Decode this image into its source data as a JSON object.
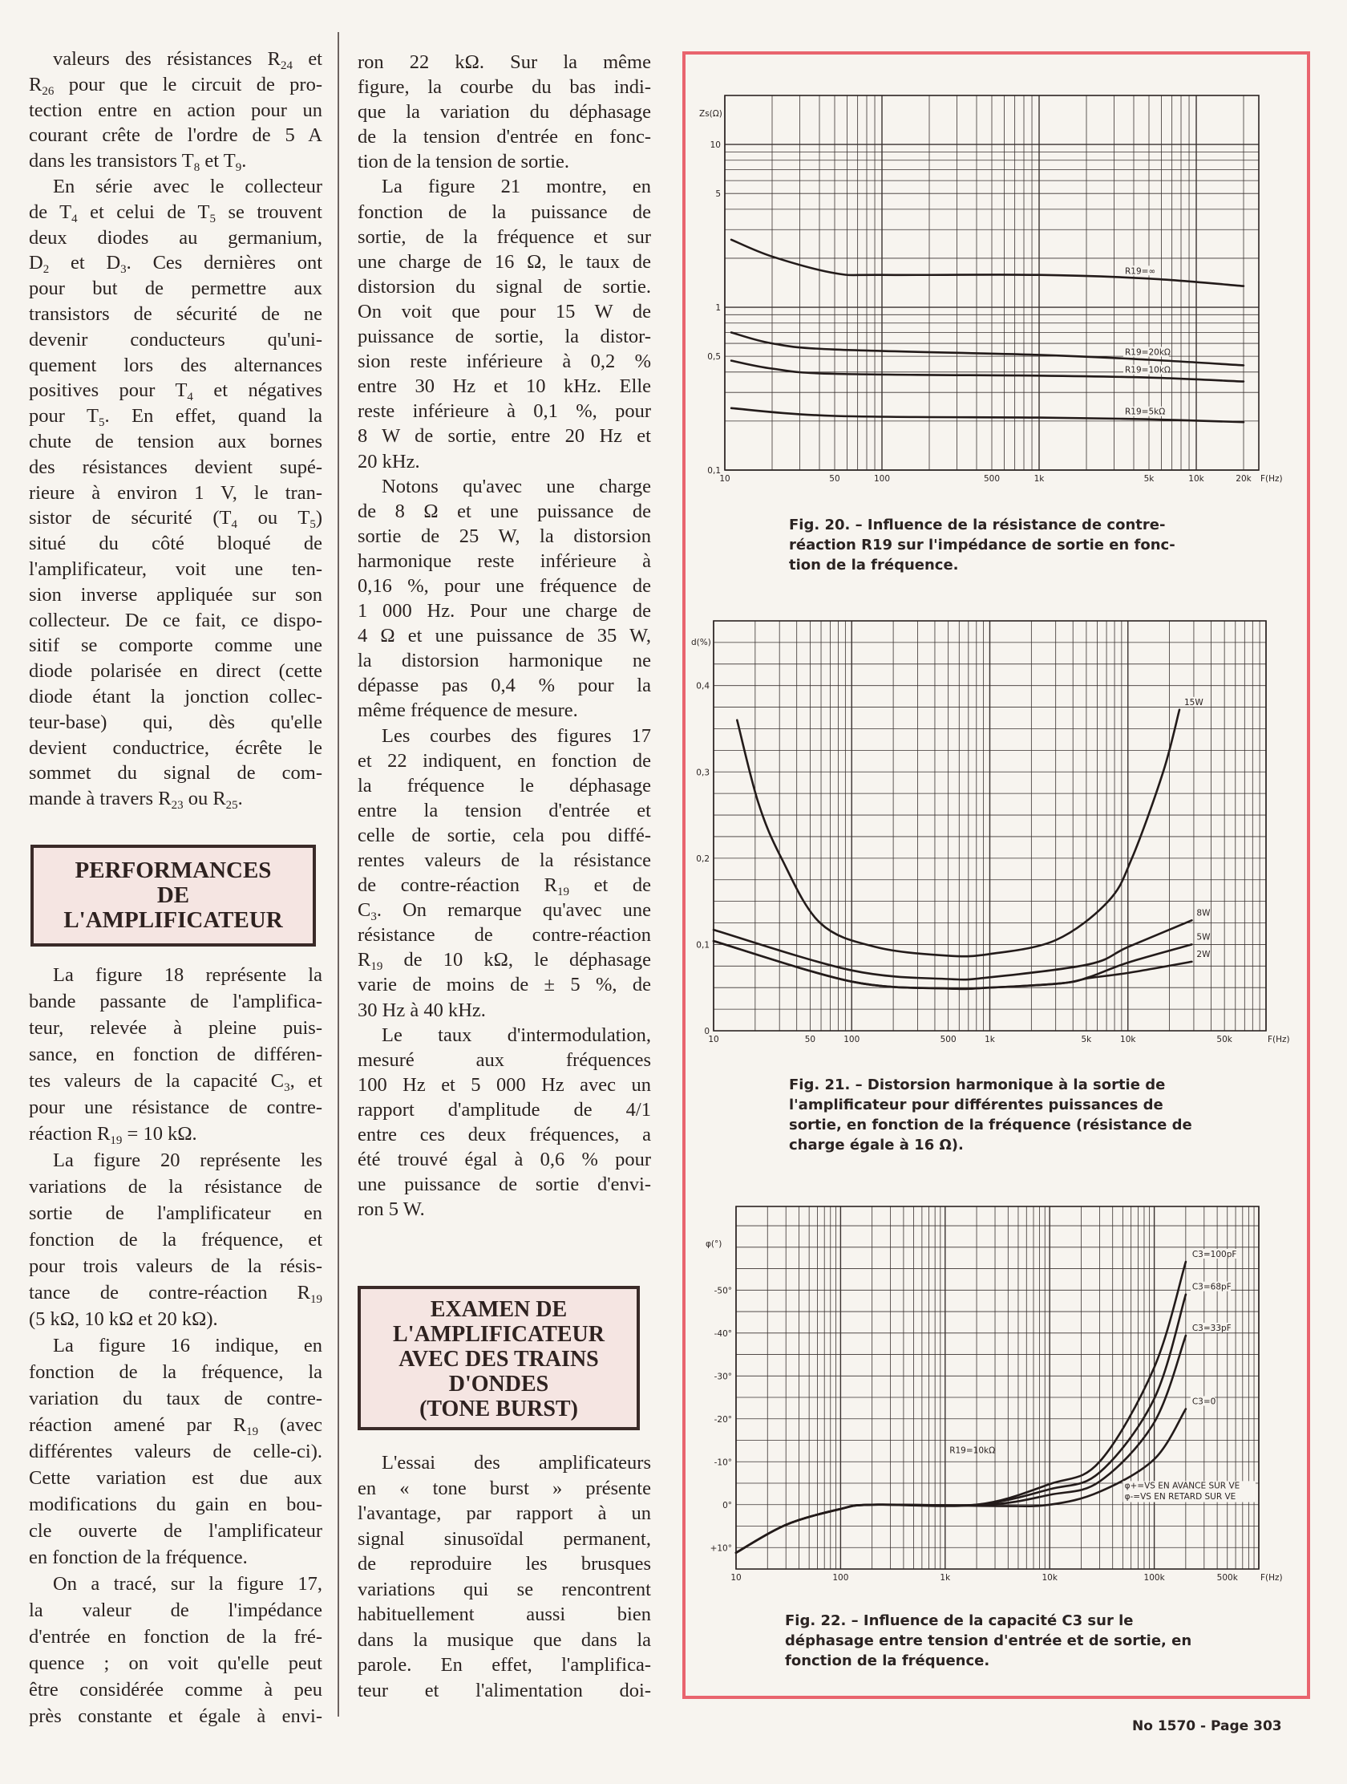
{
  "columns": {
    "col1a": [
      [
        "valeurs des résistances R_{24} et",
        "R_{26} pour que le circuit de pro-",
        "tection entre en action pour un",
        "courant crête de l'ordre de 5 A",
        "dans les transistors T_{8} et T_{9}."
      ],
      [
        "En série avec le collecteur",
        "de T_{4} et celui de T_{5} se trouvent",
        "deux diodes au germanium,",
        "D_{2} et D_{3}. Ces dernières ont",
        "pour but de permettre aux",
        "transistors de sécurité de ne",
        "devenir conducteurs qu'uni-",
        "quement lors des alternances",
        "positives pour T_{4} et négatives",
        "pour T_{5}. En effet, quand la",
        "chute de tension aux bornes",
        "des résistances devient supé-",
        "rieure à environ 1 V, le tran-",
        "sistor de sécurité (T_{4} ou T_{5})",
        "situé du côté bloqué de",
        "l'amplificateur, voit une ten-",
        "sion inverse appliquée sur son",
        "collecteur. De ce fait, ce dispo-",
        "sitif se comporte comme une",
        "diode polarisée en direct (cette",
        "diode étant la jonction collec-",
        "teur-base) qui, dès qu'elle",
        "devient conductrice, écrête le",
        "sommet du signal de com-",
        "mande à travers R_{23} ou R_{25}."
      ]
    ],
    "col1b": [
      [
        "La figure 18 représente la",
        "bande passante de l'amplifica-",
        "teur, relevée à pleine puis-",
        "sance, en fonction de différen-",
        "tes valeurs de la capacité C_{3}, et",
        "pour une résistance de contre-",
        "réaction R_{19} = 10 kΩ."
      ],
      [
        "La figure 20 représente les",
        "variations de la résistance de",
        "sortie de l'amplificateur en",
        "fonction de la fréquence, et",
        "pour trois valeurs de la résis-",
        "tance de contre-réaction R_{19}",
        "(5 kΩ, 10 kΩ et 20 kΩ)."
      ],
      [
        "La figure 16 indique, en",
        "fonction de la fréquence, la",
        "variation du taux de contre-",
        "réaction amené par R_{19} (avec",
        "différentes valeurs de celle-ci).",
        "Cette variation est due aux",
        "modifications du gain en bou-",
        "cle ouverte de l'amplificateur",
        "en fonction de la fréquence."
      ],
      [
        "On a tracé, sur la figure 17,",
        "la valeur de l'impédance",
        "d'entrée en fonction de la fré-",
        "quence ; on voit qu'elle peut",
        "être considérée comme à peu",
        "près constante et égale à envi-"
      ]
    ],
    "col2a": [
      [
        "ron 22 kΩ. Sur la même",
        "figure, la courbe du bas indi-",
        "que la variation du déphasage",
        "de la tension d'entrée en fonc-",
        "tion de la tension de sortie."
      ],
      [
        "La figure 21 montre, en",
        "fonction de la puissance de",
        "sortie, de la fréquence et sur",
        "une charge de 16 Ω, le taux de",
        "distorsion du signal de sortie.",
        "On voit que pour 15 W de",
        "puissance de sortie, la distor-",
        "sion reste inférieure à 0,2 %",
        "entre 30 Hz et 10 kHz. Elle",
        "reste inférieure à 0,1 %, pour",
        "8 W de sortie, entre 20 Hz et",
        "20 kHz."
      ],
      [
        "Notons qu'avec une charge",
        "de 8 Ω et une puissance de",
        "sortie de 25 W, la distorsion",
        "harmonique reste inférieure à",
        "0,16 %, pour une fréquence de",
        "1 000 Hz. Pour une charge de",
        "4 Ω et une puissance de 35 W,",
        "la distorsion harmonique ne",
        "dépasse pas 0,4 % pour la",
        "même fréquence de mesure."
      ],
      [
        "Les courbes des figures 17",
        "et 22 indiquent, en fonction de",
        "la fréquence le déphasage",
        "entre la tension d'entrée et",
        "celle de sortie, cela pou diffé-",
        "rentes valeurs de la résistance",
        "de contre-réaction R_{19} et de",
        "C_{3}. On remarque qu'avec une",
        "résistance de contre-réaction",
        "R_{19} de 10 kΩ, le déphasage",
        "varie de moins de ± 5 %, de",
        "30 Hz à 40 kHz."
      ],
      [
        "Le taux d'intermodulation,",
        "mesuré aux fréquences",
        "100 Hz et 5 000 Hz avec un",
        "rapport d'amplitude de 4/1",
        "entre ces deux fréquences, a",
        "été trouvé égal à 0,6 % pour",
        "une puissance de sortie d'envi-",
        "ron 5 W."
      ]
    ],
    "col2b": [
      [
        "L'essai des amplificateurs",
        "en « tone burst » présente",
        "l'avantage, par rapport à un",
        "signal sinusoïdal permanent,",
        "de reproduire les brusques",
        "variations qui se rencontrent",
        "habituellement aussi bien",
        "dans la musique que dans la",
        "parole. En effet, l'amplifica-",
        "teur et l'alimentation doi-"
      ]
    ]
  },
  "headings": {
    "performances": [
      "PERFORMANCES",
      "DE",
      "L'AMPLIFICATEUR"
    ],
    "examen": [
      "EXAMEN DE",
      "L'AMPLIFICATEUR",
      "AVEC DES TRAINS",
      "D'ONDES",
      "(TONE BURST)"
    ]
  },
  "captions": {
    "fig20": [
      "Fig. 20. – Influence de la résistance de contre-",
      "réaction R19 sur l'impédance de sortie en fonc-",
      "tion de la fréquence."
    ],
    "fig21": [
      "Fig. 21. – Distorsion harmonique à la sortie de",
      "l'amplificateur pour différentes puissances de",
      "sortie, en fonction de la fréquence (résistance de",
      "charge égale à 16 Ω)."
    ],
    "fig22": [
      "Fig. 22. – Influence de la capacité C3 sur le",
      "déphasage entre tension d'entrée et de sortie, en",
      "fonction de la fréquence."
    ]
  },
  "footer": "No 1570 - Page 303",
  "colors": {
    "frame": "#e9646e",
    "ink": "#2b2322",
    "heading_bg": "#f5e5e2"
  },
  "chart_data": [
    {
      "id": "fig20",
      "type": "line",
      "xscale": "log",
      "yscale": "log",
      "xlim": [
        10,
        25000
      ],
      "ylim": [
        0.1,
        20
      ],
      "ylabel": "Zs(Ω)",
      "xlabel": "F(Hz)",
      "xticks": [
        [
          10,
          "10"
        ],
        [
          50,
          "50"
        ],
        [
          100,
          "100"
        ],
        [
          500,
          "500"
        ],
        [
          1000,
          "1k"
        ],
        [
          5000,
          "5k"
        ],
        [
          10000,
          "10k"
        ],
        [
          20000,
          "20k"
        ]
      ],
      "yticks": [
        [
          10,
          "10"
        ],
        [
          5,
          "5"
        ],
        [
          1,
          "1"
        ],
        [
          0.5,
          "0,5"
        ],
        [
          0.1,
          "0,1"
        ]
      ],
      "series": [
        {
          "name": "R19=∞",
          "points": [
            [
              11,
              2.6
            ],
            [
              20,
              2.05
            ],
            [
              50,
              1.62
            ],
            [
              100,
              1.58
            ],
            [
              1000,
              1.58
            ],
            [
              5000,
              1.5
            ],
            [
              20000,
              1.35
            ]
          ]
        },
        {
          "name": "R19=20kΩ",
          "points": [
            [
              11,
              0.7
            ],
            [
              20,
              0.6
            ],
            [
              50,
              0.55
            ],
            [
              1000,
              0.51
            ],
            [
              5000,
              0.476
            ],
            [
              20000,
              0.44
            ]
          ]
        },
        {
          "name": "R19=10kΩ",
          "points": [
            [
              11,
              0.47
            ],
            [
              20,
              0.42
            ],
            [
              50,
              0.39
            ],
            [
              1000,
              0.38
            ],
            [
              5000,
              0.37
            ],
            [
              20000,
              0.35
            ]
          ]
        },
        {
          "name": "R19=5kΩ",
          "points": [
            [
              11,
              0.24
            ],
            [
              50,
              0.215
            ],
            [
              1000,
              0.21
            ],
            [
              5000,
              0.205
            ],
            [
              20000,
              0.197
            ]
          ]
        }
      ]
    },
    {
      "id": "fig21",
      "type": "line",
      "xscale": "log",
      "yscale": "linear",
      "xlim": [
        10,
        100000
      ],
      "ylim": [
        0,
        0.475
      ],
      "ylabel": "d(%)",
      "xlabel": "F(Hz)",
      "xticks": [
        [
          10,
          "10"
        ],
        [
          50,
          "50"
        ],
        [
          100,
          "100"
        ],
        [
          500,
          "500"
        ],
        [
          1000,
          "1k"
        ],
        [
          5000,
          "5k"
        ],
        [
          10000,
          "10k"
        ],
        [
          50000,
          "50k"
        ]
      ],
      "yticks": [
        [
          0,
          "0"
        ],
        [
          0.1,
          "0,1"
        ],
        [
          0.2,
          "0,2"
        ],
        [
          0.3,
          "0,3"
        ],
        [
          0.4,
          "0,4"
        ]
      ],
      "series": [
        {
          "name": "15W",
          "points": [
            [
              14.8,
              0.36
            ],
            [
              21,
              0.265
            ],
            [
              31,
              0.2
            ],
            [
              59,
              0.125
            ],
            [
              150,
              0.097
            ],
            [
              500,
              0.087
            ],
            [
              1000,
              0.089
            ],
            [
              3000,
              0.105
            ],
            [
              7200,
              0.15
            ],
            [
              10700,
              0.2
            ],
            [
              18000,
              0.3
            ],
            [
              23600,
              0.372
            ]
          ]
        },
        {
          "name": "8W",
          "points": [
            [
              10,
              0.117
            ],
            [
              100,
              0.07
            ],
            [
              500,
              0.06
            ],
            [
              1000,
              0.062
            ],
            [
              5200,
              0.077
            ],
            [
              10000,
              0.097
            ],
            [
              29000,
              0.128
            ]
          ]
        },
        {
          "name": "5W",
          "points": [
            [
              10,
              0.104
            ],
            [
              100,
              0.057
            ],
            [
              500,
              0.049
            ],
            [
              1000,
              0.05
            ],
            [
              3300,
              0.055
            ],
            [
              5200,
              0.062
            ],
            [
              10000,
              0.079
            ],
            [
              29000,
              0.1
            ]
          ]
        },
        {
          "name": "2W",
          "points": [
            [
              10,
              0.104
            ],
            [
              100,
              0.057
            ],
            [
              500,
              0.049
            ],
            [
              1000,
              0.05
            ],
            [
              3300,
              0.055
            ],
            [
              5200,
              0.061
            ],
            [
              10000,
              0.067
            ],
            [
              29000,
              0.08
            ]
          ]
        }
      ]
    },
    {
      "id": "fig22",
      "type": "line",
      "xscale": "log",
      "yscale": "linear",
      "xlim": [
        10,
        1000000
      ],
      "ylim": [
        15,
        -69.5
      ],
      "ylabel": "φ(°)",
      "xlabel": "F(Hz)",
      "xticks": [
        [
          10,
          "10"
        ],
        [
          100,
          "100"
        ],
        [
          1000,
          "1k"
        ],
        [
          10000,
          "10k"
        ],
        [
          100000,
          "100k"
        ],
        [
          500000,
          "500k"
        ]
      ],
      "yticks": [
        [
          -50,
          "-50°"
        ],
        [
          -40,
          "-40°"
        ],
        [
          -30,
          "-30°"
        ],
        [
          -20,
          "-20°"
        ],
        [
          -10,
          "-10°"
        ],
        [
          0,
          "0°"
        ],
        [
          10,
          "+10°"
        ]
      ],
      "annotations": [
        "R19=10kΩ",
        "φ+=VS EN AVANCE SUR VE",
        "φ-=VS EN RETARD SUR VE"
      ],
      "series": [
        {
          "name": "C3=100pF",
          "points": [
            [
              10,
              11.2
            ],
            [
              30,
              4.7
            ],
            [
              100,
              1
            ],
            [
              200,
              0
            ],
            [
              2000,
              0
            ],
            [
              10000,
              -4.8
            ],
            [
              30000,
              -10
            ],
            [
              100000,
              -32
            ],
            [
              200000,
              -56.6
            ]
          ]
        },
        {
          "name": "C3=68pF",
          "points": [
            [
              10,
              11.2
            ],
            [
              30,
              4.7
            ],
            [
              100,
              1
            ],
            [
              200,
              0
            ],
            [
              2000,
              0
            ],
            [
              10000,
              -3.6
            ],
            [
              30000,
              -7.5
            ],
            [
              100000,
              -24.7
            ],
            [
              200000,
              -49
            ]
          ]
        },
        {
          "name": "C3=33pF",
          "points": [
            [
              10,
              11.2
            ],
            [
              30,
              4.7
            ],
            [
              100,
              1
            ],
            [
              200,
              0
            ],
            [
              2500,
              0
            ],
            [
              10000,
              -2.3
            ],
            [
              30000,
              -5.4
            ],
            [
              100000,
              -19.2
            ],
            [
              200000,
              -39.4
            ]
          ]
        },
        {
          "name": "C3=0",
          "points": [
            [
              10,
              11.2
            ],
            [
              30,
              4.7
            ],
            [
              100,
              1
            ],
            [
              200,
              0
            ],
            [
              3000,
              0.3
            ],
            [
              10000,
              0
            ],
            [
              30000,
              -3
            ],
            [
              100000,
              -10.6
            ],
            [
              200000,
              -22.3
            ]
          ]
        }
      ]
    }
  ]
}
